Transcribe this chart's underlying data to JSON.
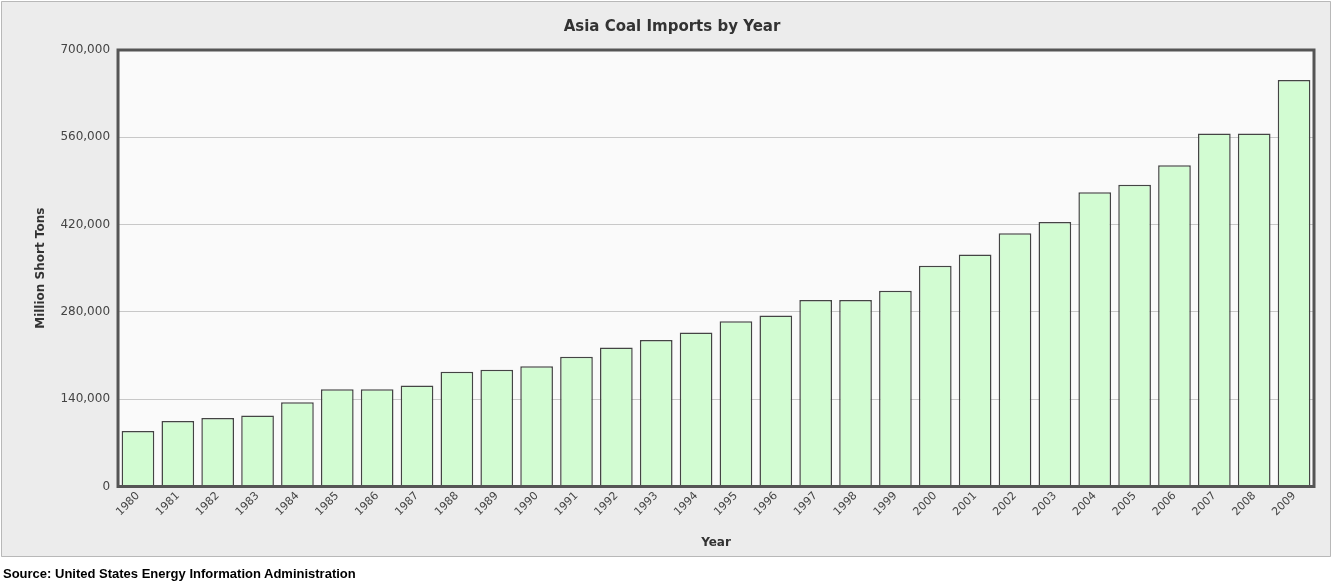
{
  "chart_data": {
    "type": "bar",
    "title": "Asia Coal Imports by Year",
    "xlabel": "Year",
    "ylabel": "Million Short Tons",
    "categories": [
      "1980",
      "1981",
      "1982",
      "1983",
      "1984",
      "1985",
      "1986",
      "1987",
      "1988",
      "1989",
      "1990",
      "1991",
      "1992",
      "1993",
      "1994",
      "1995",
      "1996",
      "1997",
      "1998",
      "1999",
      "2000",
      "2001",
      "2002",
      "2003",
      "2004",
      "2005",
      "2006",
      "2007",
      "2008",
      "2009"
    ],
    "values": [
      89000,
      105000,
      110000,
      114000,
      135000,
      156000,
      156000,
      162000,
      184000,
      187000,
      193000,
      208000,
      223000,
      235000,
      247000,
      265000,
      274000,
      299000,
      299000,
      314000,
      354000,
      372000,
      406000,
      424000,
      472000,
      484000,
      515000,
      566000,
      566000,
      652000
    ],
    "color": "#d2fcd2",
    "ylim": [
      0,
      700000
    ],
    "yticks": [
      0,
      {
        "value": 140000,
        "label": "140,000"
      },
      {
        "value": 280000,
        "label": "280,000"
      },
      {
        "value": 420000,
        "label": "420,000"
      },
      {
        "value": 560000,
        "label": "560,000"
      },
      {
        "value": 700000,
        "label": "700,000"
      }
    ],
    "grid": "y",
    "annotations": [
      "Source: United States Energy Information Administration"
    ]
  }
}
